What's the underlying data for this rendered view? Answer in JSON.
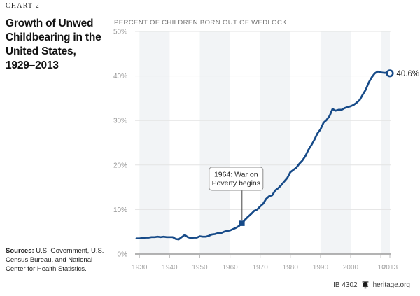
{
  "sidebar": {
    "kicker": "CHART 2",
    "title_lines": [
      "Growth of Unwed",
      "Childbearing in the",
      "United States,",
      "1929–2013"
    ],
    "sources_label": "Sources:",
    "sources_text": " U.S. Government, U.S. Census Bureau, and National Center for Health Statistics."
  },
  "chart": {
    "heading": "PERCENT OF CHILDREN BORN OUT OF WEDLOCK"
  },
  "footer": {
    "doc_id": "IB 4302",
    "site": "heritage.org",
    "bell_icon": "liberty-bell"
  },
  "chart_data": {
    "type": "line",
    "title": "Growth of Unwed Childbearing in the United States, 1929–2013",
    "ylabel": "PERCENT OF CHILDREN BORN OUT OF WEDLOCK",
    "xlabel": "",
    "xlim": [
      1929,
      2013
    ],
    "ylim": [
      0,
      50
    ],
    "grid": true,
    "legend": "none",
    "x": [
      1929,
      1930,
      1931,
      1932,
      1933,
      1934,
      1935,
      1936,
      1937,
      1938,
      1939,
      1940,
      1941,
      1942,
      1943,
      1944,
      1945,
      1946,
      1947,
      1948,
      1949,
      1950,
      1951,
      1952,
      1953,
      1954,
      1955,
      1956,
      1957,
      1958,
      1959,
      1960,
      1961,
      1962,
      1963,
      1964,
      1965,
      1966,
      1967,
      1968,
      1969,
      1970,
      1971,
      1972,
      1973,
      1974,
      1975,
      1976,
      1977,
      1978,
      1979,
      1980,
      1981,
      1982,
      1983,
      1984,
      1985,
      1986,
      1987,
      1988,
      1989,
      1990,
      1991,
      1992,
      1993,
      1994,
      1995,
      1996,
      1997,
      1998,
      1999,
      2000,
      2001,
      2002,
      2003,
      2004,
      2005,
      2006,
      2007,
      2008,
      2009,
      2010,
      2011,
      2012,
      2013
    ],
    "y": [
      3.5,
      3.5,
      3.6,
      3.7,
      3.7,
      3.8,
      3.8,
      3.9,
      3.8,
      3.9,
      3.8,
      3.8,
      3.8,
      3.4,
      3.3,
      3.8,
      4.3,
      3.8,
      3.6,
      3.7,
      3.7,
      4.0,
      3.9,
      3.9,
      4.1,
      4.4,
      4.5,
      4.7,
      4.7,
      5.0,
      5.2,
      5.3,
      5.6,
      5.9,
      6.3,
      6.9,
      7.7,
      8.4,
      9.0,
      9.7,
      10.0,
      10.7,
      11.3,
      12.4,
      13.0,
      13.2,
      14.3,
      14.8,
      15.5,
      16.3,
      17.1,
      18.4,
      18.9,
      19.4,
      20.3,
      21.0,
      22.0,
      23.4,
      24.5,
      25.7,
      27.1,
      28.0,
      29.5,
      30.1,
      31.0,
      32.6,
      32.2,
      32.4,
      32.4,
      32.8,
      33.0,
      33.2,
      33.5,
      34.0,
      34.6,
      35.8,
      36.9,
      38.5,
      39.7,
      40.6,
      41.0,
      40.8,
      40.7,
      40.7,
      40.6
    ],
    "yticks": [
      0,
      10,
      20,
      30,
      40,
      50
    ],
    "ytick_labels": [
      "0%",
      "10%",
      "20%",
      "30%",
      "40%",
      "50%"
    ],
    "xticks": [
      1930,
      1940,
      1950,
      1960,
      1970,
      1980,
      1990,
      2000,
      2010,
      2013
    ],
    "xtick_labels": [
      "1930",
      "1940",
      "1950",
      "1960",
      "1970",
      "1980",
      "1990",
      "2000",
      "’10",
      "2013"
    ],
    "stripe_decades": [
      [
        1930,
        1940
      ],
      [
        1950,
        1960
      ],
      [
        1970,
        1980
      ],
      [
        1990,
        2000
      ],
      [
        2010,
        2013
      ]
    ],
    "line_color": "#164a88",
    "stripe_color": "#f2f4f6",
    "grid_color": "#e3e3e3",
    "axis_color": "#9a9a9a",
    "tick_color": "#bdbdbd",
    "ytick_label_color": "#949494",
    "xtick_label_color": "#a6a6a6",
    "annotation": {
      "lines": [
        "1964: War on",
        "Poverty begins"
      ],
      "year": 1964,
      "value": 6.9,
      "box_border_color": "#8c8c8c",
      "text_color": "#222222",
      "leader_color": "#444444"
    },
    "end_point": {
      "year": 2013,
      "value": 40.6
    },
    "end_label": "40.6%",
    "end_label_color": "#1c1c1c"
  }
}
